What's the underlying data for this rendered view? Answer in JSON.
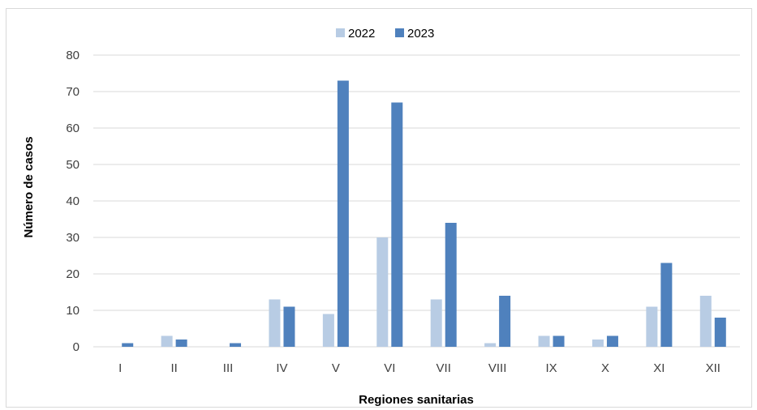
{
  "chart_data": {
    "type": "bar",
    "title": "",
    "xlabel": "Regiones sanitarias",
    "ylabel": "Número de casos",
    "ylim": [
      0,
      80
    ],
    "yticks": [
      0,
      10,
      20,
      30,
      40,
      50,
      60,
      70,
      80
    ],
    "grid": true,
    "legend_position": "top-center",
    "categories": [
      "I",
      "II",
      "III",
      "IV",
      "V",
      "VI",
      "VII",
      "VIII",
      "IX",
      "X",
      "XI",
      "XII"
    ],
    "series": [
      {
        "name": "2022",
        "color": "#b8cce4",
        "values": [
          0,
          3,
          0,
          13,
          9,
          30,
          13,
          1,
          3,
          2,
          11,
          14
        ]
      },
      {
        "name": "2023",
        "color": "#4f81bd",
        "values": [
          1,
          2,
          1,
          11,
          73,
          67,
          34,
          14,
          3,
          3,
          23,
          8
        ]
      }
    ]
  }
}
